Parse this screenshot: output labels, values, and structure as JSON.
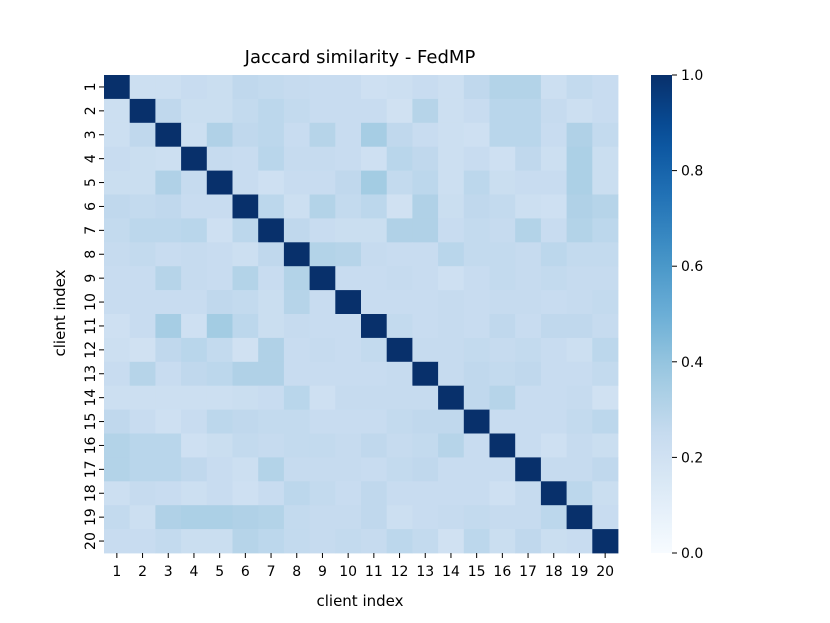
{
  "chart_data": {
    "type": "heatmap",
    "title": "Jaccard similarity - FedMP",
    "xlabel": "client index",
    "ylabel": "client index",
    "x_ticks": [
      "1",
      "2",
      "3",
      "4",
      "5",
      "6",
      "7",
      "8",
      "9",
      "10",
      "11",
      "12",
      "13",
      "14",
      "15",
      "16",
      "17",
      "18",
      "19",
      "20"
    ],
    "y_ticks": [
      "1",
      "2",
      "3",
      "4",
      "5",
      "6",
      "7",
      "8",
      "9",
      "10",
      "11",
      "12",
      "13",
      "14",
      "15",
      "16",
      "17",
      "18",
      "19",
      "20"
    ],
    "colorbar": {
      "min": 0.0,
      "max": 1.0,
      "ticks": [
        "0.0",
        "0.2",
        "0.4",
        "0.6",
        "0.8",
        "1.0"
      ],
      "colormap": "Blues"
    },
    "matrix": [
      [
        1.0,
        0.22,
        0.22,
        0.24,
        0.23,
        0.27,
        0.26,
        0.25,
        0.24,
        0.24,
        0.21,
        0.22,
        0.24,
        0.22,
        0.27,
        0.31,
        0.31,
        0.22,
        0.26,
        0.24
      ],
      [
        0.22,
        1.0,
        0.27,
        0.23,
        0.23,
        0.26,
        0.28,
        0.26,
        0.24,
        0.24,
        0.24,
        0.2,
        0.3,
        0.22,
        0.24,
        0.29,
        0.29,
        0.25,
        0.22,
        0.24
      ],
      [
        0.22,
        0.27,
        1.0,
        0.22,
        0.32,
        0.27,
        0.28,
        0.24,
        0.3,
        0.24,
        0.35,
        0.27,
        0.24,
        0.22,
        0.21,
        0.29,
        0.29,
        0.24,
        0.32,
        0.26
      ],
      [
        0.24,
        0.23,
        0.22,
        1.0,
        0.25,
        0.24,
        0.29,
        0.25,
        0.25,
        0.24,
        0.21,
        0.29,
        0.27,
        0.22,
        0.24,
        0.21,
        0.27,
        0.22,
        0.33,
        0.23
      ],
      [
        0.23,
        0.23,
        0.32,
        0.25,
        1.0,
        0.24,
        0.21,
        0.24,
        0.24,
        0.27,
        0.36,
        0.26,
        0.28,
        0.22,
        0.28,
        0.23,
        0.24,
        0.24,
        0.33,
        0.23
      ],
      [
        0.27,
        0.26,
        0.27,
        0.24,
        0.24,
        1.0,
        0.28,
        0.22,
        0.31,
        0.26,
        0.28,
        0.2,
        0.32,
        0.23,
        0.27,
        0.26,
        0.22,
        0.21,
        0.32,
        0.3
      ],
      [
        0.26,
        0.28,
        0.28,
        0.29,
        0.21,
        0.28,
        1.0,
        0.27,
        0.24,
        0.23,
        0.23,
        0.32,
        0.32,
        0.24,
        0.26,
        0.25,
        0.31,
        0.24,
        0.31,
        0.28
      ],
      [
        0.25,
        0.26,
        0.24,
        0.25,
        0.24,
        0.22,
        0.27,
        1.0,
        0.31,
        0.3,
        0.25,
        0.24,
        0.24,
        0.29,
        0.26,
        0.26,
        0.25,
        0.28,
        0.26,
        0.26
      ],
      [
        0.24,
        0.24,
        0.3,
        0.25,
        0.24,
        0.31,
        0.24,
        0.31,
        1.0,
        0.24,
        0.24,
        0.25,
        0.24,
        0.21,
        0.24,
        0.26,
        0.25,
        0.26,
        0.25,
        0.25
      ],
      [
        0.24,
        0.24,
        0.24,
        0.24,
        0.27,
        0.26,
        0.23,
        0.3,
        0.24,
        1.0,
        0.24,
        0.24,
        0.24,
        0.25,
        0.24,
        0.25,
        0.25,
        0.24,
        0.25,
        0.26
      ],
      [
        0.21,
        0.24,
        0.35,
        0.21,
        0.36,
        0.28,
        0.23,
        0.25,
        0.24,
        0.24,
        1.0,
        0.26,
        0.24,
        0.25,
        0.24,
        0.27,
        0.24,
        0.27,
        0.27,
        0.25
      ],
      [
        0.22,
        0.2,
        0.27,
        0.29,
        0.26,
        0.2,
        0.32,
        0.24,
        0.25,
        0.24,
        0.26,
        1.0,
        0.25,
        0.25,
        0.26,
        0.25,
        0.26,
        0.24,
        0.22,
        0.28
      ],
      [
        0.24,
        0.3,
        0.24,
        0.27,
        0.28,
        0.32,
        0.32,
        0.24,
        0.24,
        0.24,
        0.24,
        0.25,
        1.0,
        0.25,
        0.27,
        0.26,
        0.27,
        0.24,
        0.24,
        0.26
      ],
      [
        0.22,
        0.22,
        0.22,
        0.22,
        0.22,
        0.23,
        0.24,
        0.29,
        0.21,
        0.25,
        0.25,
        0.25,
        0.25,
        1.0,
        0.27,
        0.3,
        0.24,
        0.24,
        0.25,
        0.2
      ],
      [
        0.27,
        0.24,
        0.21,
        0.24,
        0.28,
        0.27,
        0.26,
        0.26,
        0.24,
        0.24,
        0.24,
        0.26,
        0.27,
        0.27,
        1.0,
        0.24,
        0.24,
        0.24,
        0.26,
        0.28
      ],
      [
        0.31,
        0.29,
        0.29,
        0.21,
        0.23,
        0.26,
        0.25,
        0.26,
        0.26,
        0.25,
        0.27,
        0.25,
        0.26,
        0.3,
        0.24,
        1.0,
        0.24,
        0.21,
        0.25,
        0.23
      ],
      [
        0.31,
        0.29,
        0.29,
        0.27,
        0.24,
        0.22,
        0.31,
        0.25,
        0.25,
        0.25,
        0.24,
        0.26,
        0.27,
        0.24,
        0.24,
        0.24,
        1.0,
        0.25,
        0.25,
        0.27
      ],
      [
        0.22,
        0.25,
        0.24,
        0.22,
        0.24,
        0.21,
        0.24,
        0.28,
        0.26,
        0.24,
        0.27,
        0.24,
        0.24,
        0.24,
        0.24,
        0.21,
        0.25,
        1.0,
        0.28,
        0.23
      ],
      [
        0.26,
        0.22,
        0.32,
        0.33,
        0.33,
        0.32,
        0.31,
        0.26,
        0.25,
        0.25,
        0.27,
        0.22,
        0.24,
        0.25,
        0.26,
        0.25,
        0.25,
        0.28,
        1.0,
        0.24
      ],
      [
        0.24,
        0.24,
        0.26,
        0.23,
        0.23,
        0.3,
        0.28,
        0.26,
        0.25,
        0.26,
        0.25,
        0.28,
        0.26,
        0.2,
        0.28,
        0.23,
        0.27,
        0.23,
        0.24,
        1.0
      ]
    ]
  }
}
